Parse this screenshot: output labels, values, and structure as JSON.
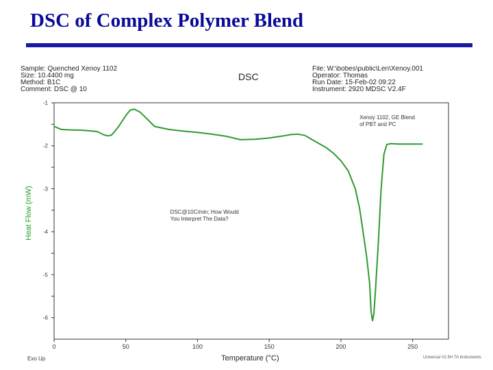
{
  "slide": {
    "title": "DSC of Complex Polymer Blend"
  },
  "header": {
    "left": [
      "Sample: Quenched  Xenoy 1102",
      "Size:  10.4400 mg",
      "Method: B1C",
      "Comment: DSC @ 10"
    ],
    "center": "DSC",
    "right": [
      "File: W:\\bobes\\public\\Len\\Xenoy.001",
      "Operator: Thomas",
      "Run Date: 15-Feb-02 09:22",
      "Instrument: 2920 MDSC V2.4F"
    ]
  },
  "footer": {
    "left": "Exo Up",
    "right": "Universal V2.5H TA Instruments"
  },
  "chart_data": {
    "type": "line",
    "xlabel": "Temperature (°C)",
    "ylabel": "Heat Flow (mW)",
    "xlim": [
      0,
      275
    ],
    "ylim": [
      -6.5,
      -1.0
    ],
    "xticks": [
      0,
      50,
      100,
      150,
      200,
      250
    ],
    "yticks": [
      {
        "value": -1.0,
        "label": "-1"
      },
      {
        "value": -1.5,
        "label": ""
      },
      {
        "value": -2.0,
        "label": "-2"
      },
      {
        "value": -2.5,
        "label": ""
      },
      {
        "value": -3.0,
        "label": "-3"
      },
      {
        "value": -3.5,
        "label": ""
      },
      {
        "value": -4.0,
        "label": "-4"
      },
      {
        "value": -4.5,
        "label": ""
      },
      {
        "value": -5.0,
        "label": "-5"
      },
      {
        "value": -5.5,
        "label": ""
      },
      {
        "value": -6.0,
        "label": "-6"
      }
    ],
    "grid": false,
    "line_color": "#2e9a2e",
    "series": [
      {
        "name": "",
        "x": [
          0,
          5,
          10,
          20,
          30,
          35,
          38,
          40,
          42,
          45,
          50,
          53,
          56,
          60,
          65,
          70,
          80,
          90,
          100,
          110,
          120,
          130,
          140,
          150,
          160,
          165,
          170,
          175,
          180,
          190,
          195,
          200,
          205,
          210,
          213,
          215,
          218,
          220,
          221,
          222,
          223,
          224,
          226,
          228,
          230,
          232,
          235,
          240,
          250,
          257
        ],
        "y": [
          -1.55,
          -1.62,
          -1.63,
          -1.64,
          -1.67,
          -1.75,
          -1.77,
          -1.75,
          -1.68,
          -1.55,
          -1.3,
          -1.17,
          -1.15,
          -1.22,
          -1.38,
          -1.55,
          -1.62,
          -1.66,
          -1.69,
          -1.73,
          -1.78,
          -1.86,
          -1.85,
          -1.82,
          -1.77,
          -1.74,
          -1.73,
          -1.76,
          -1.86,
          -2.05,
          -2.18,
          -2.35,
          -2.58,
          -3.0,
          -3.45,
          -3.9,
          -4.6,
          -5.2,
          -5.85,
          -6.07,
          -5.9,
          -5.4,
          -4.3,
          -3.0,
          -2.2,
          -1.97,
          -1.95,
          -1.96,
          -1.96,
          -1.96
        ]
      }
    ],
    "annotations": [
      {
        "lines": [
          "Xenoy 1102, GE Blend",
          "of PBT and PC"
        ],
        "x": 213,
        "y": -1.38
      },
      {
        "lines": [
          "DSC@10C/min; How Would",
          "You Interpret The Data?"
        ],
        "x": 81,
        "y": -3.58
      }
    ]
  }
}
